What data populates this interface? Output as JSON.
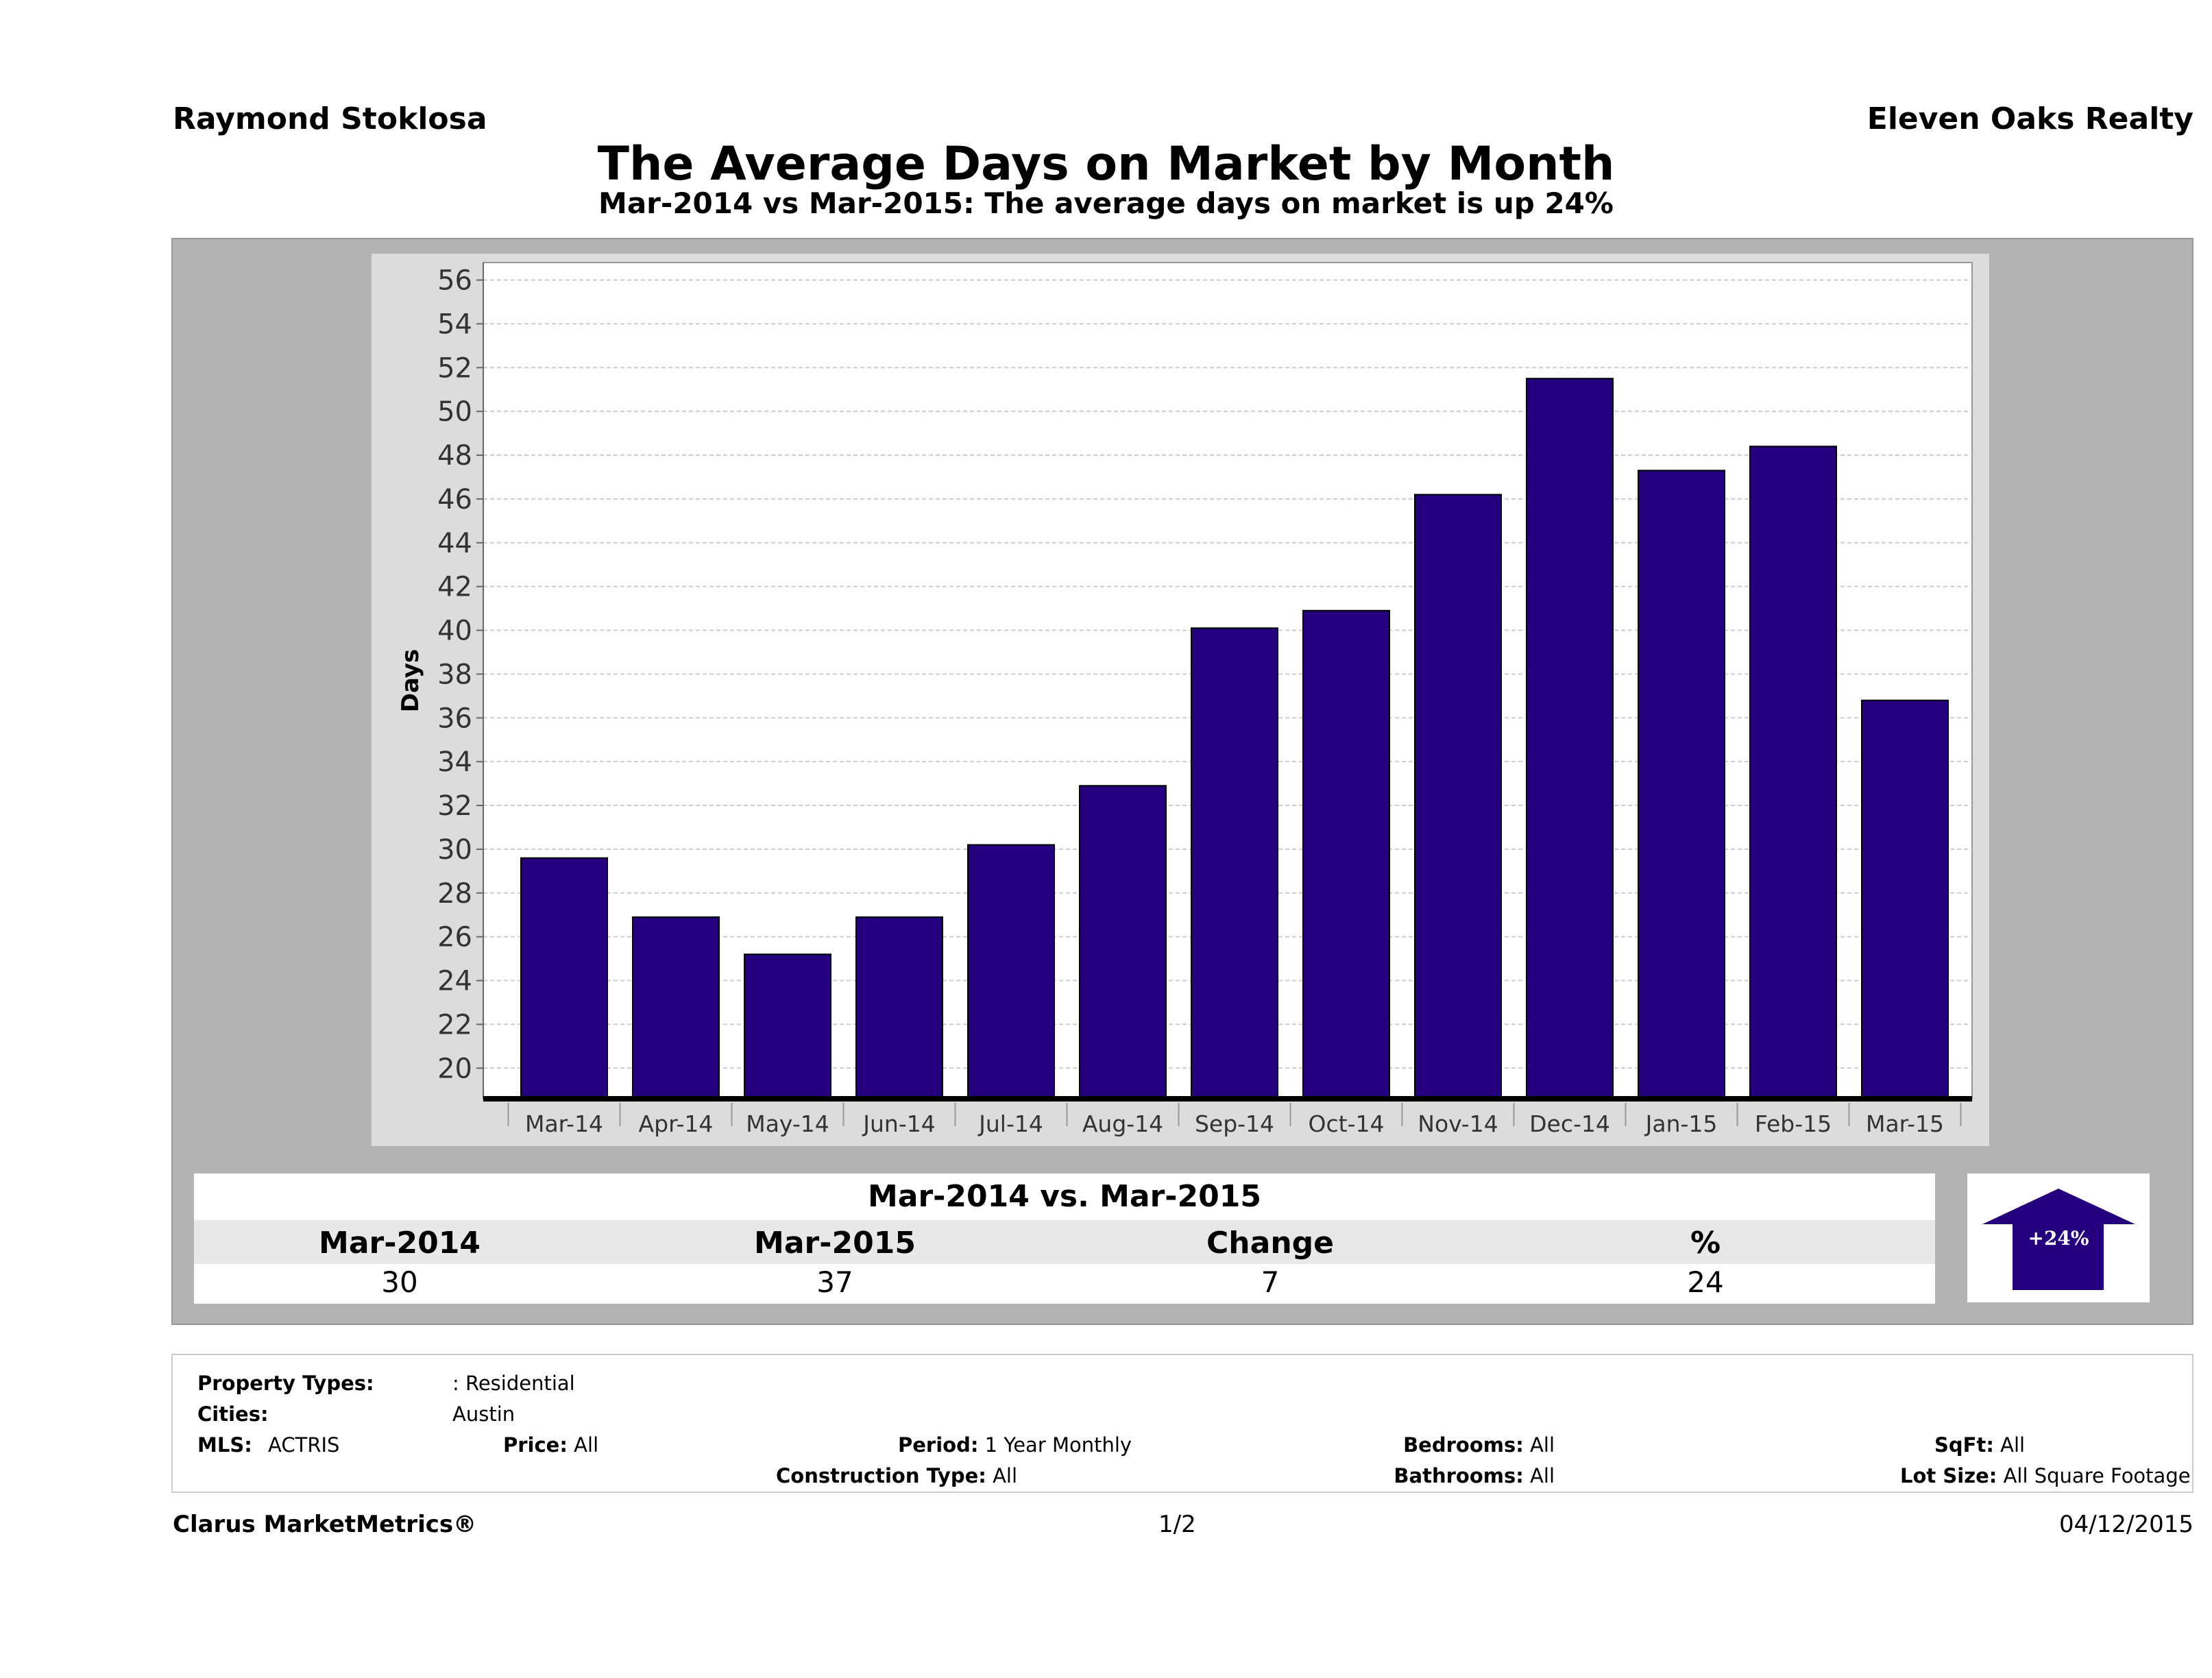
{
  "header": {
    "agent": "Raymond Stoklosa",
    "company": "Eleven Oaks Realty"
  },
  "chart_data": {
    "type": "bar",
    "title": "The Average Days on Market by Month",
    "subtitle": "Mar-2014 vs Mar-2015: The average days on market is up 24%",
    "ylabel": "Days",
    "xlabel": "",
    "categories": [
      "Mar-14",
      "Apr-14",
      "May-14",
      "Jun-14",
      "Jul-14",
      "Aug-14",
      "Sep-14",
      "Oct-14",
      "Nov-14",
      "Dec-14",
      "Jan-15",
      "Feb-15",
      "Mar-15"
    ],
    "values": [
      29.6,
      26.9,
      25.2,
      26.9,
      30.2,
      32.9,
      40.1,
      40.9,
      46.2,
      51.5,
      47.3,
      48.4,
      36.8
    ],
    "yticks": [
      "20",
      "22",
      "24",
      "26",
      "28",
      "30",
      "32",
      "34",
      "36",
      "38",
      "40",
      "42",
      "44",
      "46",
      "48",
      "50",
      "52",
      "54",
      "56"
    ],
    "ylim": [
      18.6,
      56.8
    ],
    "grid": true,
    "bar_color": "#24007f"
  },
  "comparison": {
    "title": "Mar-2014 vs. Mar-2015",
    "headers": [
      "Mar-2014",
      "Mar-2015",
      "Change",
      "%"
    ],
    "values": [
      "30",
      "37",
      "7",
      "24"
    ],
    "badge": "+24%"
  },
  "filters": {
    "property_types_label": "Property Types:",
    "property_types": ": Residential",
    "cities_label": "Cities:",
    "cities": "Austin",
    "mls_label": "MLS:",
    "mls": "ACTRIS",
    "price_label": "Price:",
    "price": "All",
    "period_label": "Period:",
    "period": "1 Year Monthly",
    "construction_label": "Construction Type:",
    "construction": "All",
    "bedrooms_label": "Bedrooms:",
    "bedrooms": "All",
    "bathrooms_label": "Bathrooms:",
    "bathrooms": "All",
    "sqft_label": "SqFt:",
    "sqft": "All",
    "lot_label": "Lot Size:",
    "lot": "All Square Footage"
  },
  "footer": {
    "brand": "Clarus MarketMetrics®",
    "page": "1/2",
    "date": "04/12/2015"
  }
}
